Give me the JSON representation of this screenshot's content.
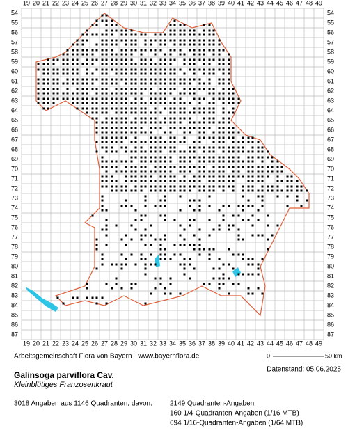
{
  "grid": {
    "columns": [
      19,
      20,
      21,
      22,
      23,
      24,
      25,
      26,
      27,
      28,
      29,
      30,
      31,
      32,
      33,
      34,
      35,
      36,
      37,
      38,
      39,
      40,
      41,
      42,
      43,
      44,
      45,
      46,
      47,
      48,
      49
    ],
    "rows": [
      54,
      55,
      56,
      57,
      58,
      59,
      60,
      61,
      62,
      63,
      64,
      65,
      66,
      67,
      68,
      69,
      70,
      71,
      72,
      73,
      74,
      75,
      76,
      77,
      78,
      79,
      80,
      81,
      82,
      83,
      84,
      85,
      86,
      87
    ]
  },
  "scale": {
    "start": "0",
    "end": "50 km"
  },
  "credit": "Arbeitsgemeinschaft Flora von Bayern - www.bayernflora.de",
  "date": "Datenstand: 05.06.2025",
  "species": {
    "name": "Galinsoga parviflora Cav.",
    "german": "Kleinblütiges Franzosenkraut"
  },
  "summary": {
    "total": "3018 Angaben aus 1146 Quadranten, davon:",
    "lines": [
      "2149 Quadranten-Angaben",
      "160 1/4-Quadranten-Angaben (1/16 MTB)",
      "694 1/16-Quadranten-Angaben (1/64 MTB)"
    ]
  }
}
